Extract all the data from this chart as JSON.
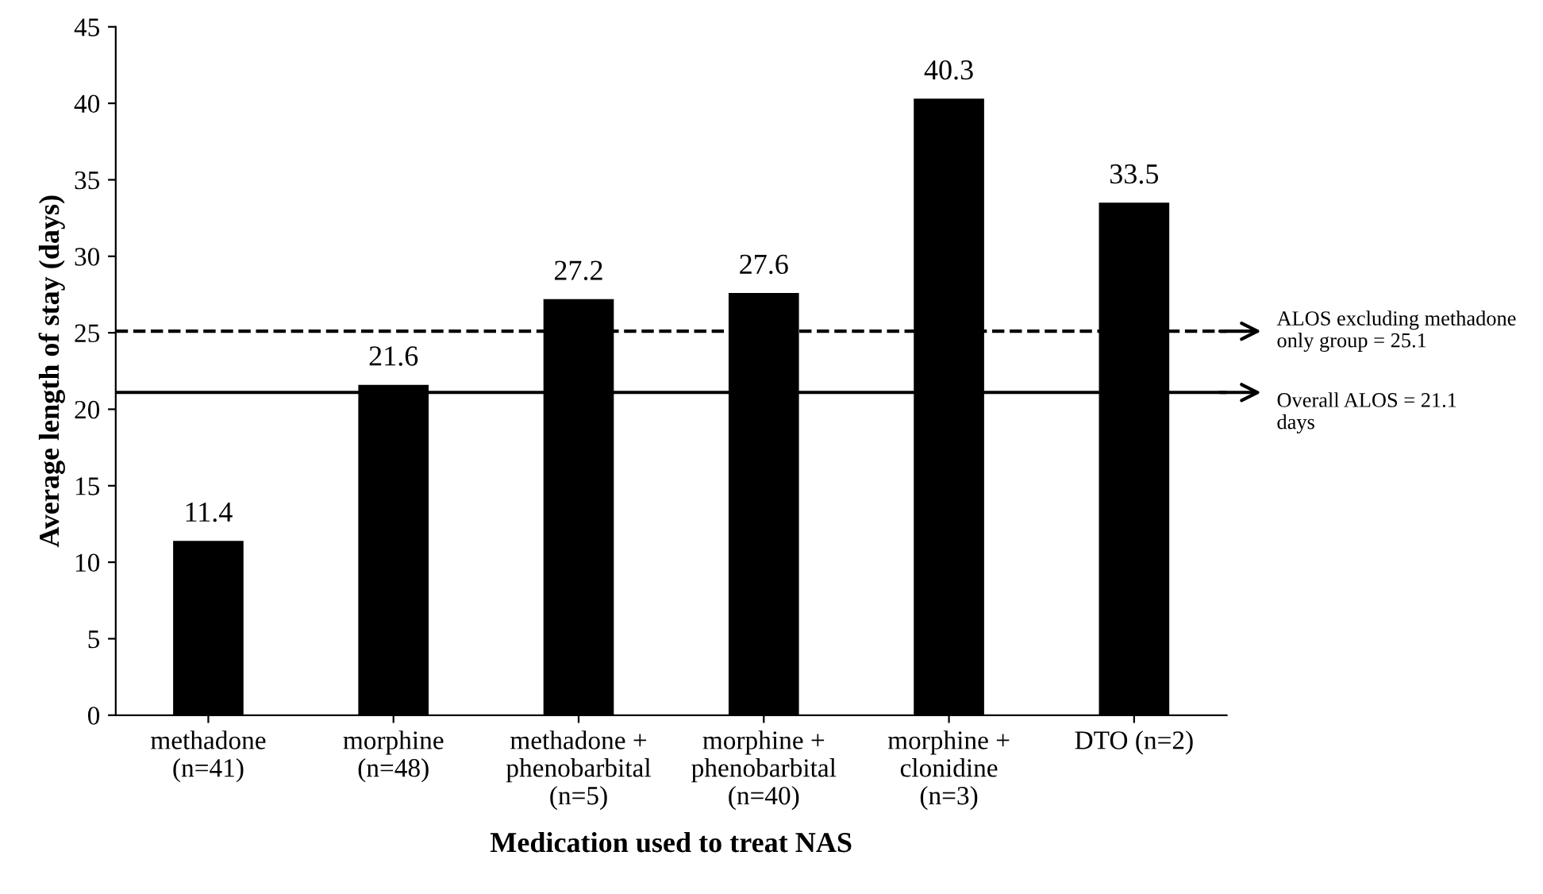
{
  "chart_data": {
    "type": "bar",
    "xlabel": "Medication used to treat NAS",
    "ylabel": "Average length of stay (days)",
    "categories": [
      "methadone\n(n=41)",
      "morphine\n(n=48)",
      "methadone +\nphenobarbital\n(n=5)",
      "morphine +\nphenobarbital\n(n=40)",
      "morphine +\nclonidine\n(n=3)",
      "DTO (n=2)"
    ],
    "values": [
      11.4,
      21.6,
      27.2,
      27.6,
      40.3,
      33.5
    ],
    "color": "#000000",
    "ylim": [
      0,
      45
    ],
    "yticks": [
      0,
      5,
      10,
      15,
      20,
      25,
      30,
      35,
      40,
      45
    ],
    "data_labels": true,
    "grid": false,
    "ref_lines": [
      {
        "axis": "y",
        "value": 25.1,
        "label": "ALOS excluding methadone\nonly group = 25.1",
        "line_style": "dashed",
        "color": "#000000"
      },
      {
        "axis": "y",
        "value": 21.1,
        "label": "Overall ALOS = 21.1\ndays",
        "line_style": "solid",
        "color": "#000000"
      }
    ]
  }
}
